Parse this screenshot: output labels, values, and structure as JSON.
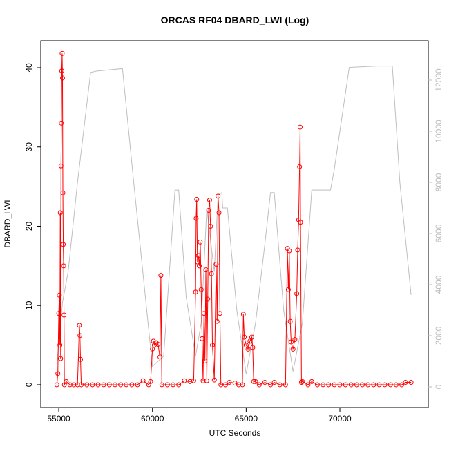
{
  "chart_data": {
    "type": "line",
    "title": "ORCAS RF04 DBARD_LWI (Log)",
    "x_label": "UTC Seconds",
    "y_label": "DBARD_LWI",
    "xlim": [
      54040,
      74717
    ],
    "xticks": [
      55000,
      60000,
      65000,
      70000
    ],
    "ylim": [
      -2.88,
      43.4
    ],
    "yticks": [
      0,
      10,
      20,
      30,
      40
    ],
    "y2lim": [
      -811,
      13540
    ],
    "y2ticks": [
      0,
      2000,
      4000,
      6000,
      8000,
      10000,
      12000
    ],
    "series": [
      {
        "color": "#ff0000",
        "marker": "open-circle",
        "x": [
          54900,
          54950,
          55000,
          55030,
          55060,
          55080,
          55100,
          55120,
          55140,
          55160,
          55180,
          55200,
          55220,
          55240,
          55260,
          55280,
          55300,
          55400,
          55600,
          55800,
          56000,
          56100,
          56130,
          56160,
          56200,
          56500,
          56800,
          57100,
          57400,
          57700,
          58000,
          58300,
          58600,
          58900,
          59200,
          59500,
          59800,
          59900,
          60000,
          60050,
          60100,
          60200,
          60300,
          60400,
          60450,
          60500,
          60800,
          61100,
          61400,
          61700,
          62000,
          62200,
          62300,
          62330,
          62360,
          62400,
          62450,
          62500,
          62550,
          62600,
          62650,
          62700,
          62750,
          62800,
          62850,
          62900,
          62950,
          63000,
          63050,
          63100,
          63150,
          63200,
          63300,
          63400,
          63450,
          63500,
          63550,
          63600,
          63650,
          63900,
          64100,
          64400,
          64600,
          64800,
          64850,
          64900,
          65000,
          65100,
          65200,
          65300,
          65350,
          65400,
          65500,
          65700,
          66000,
          66300,
          66500,
          66800,
          67100,
          67200,
          67250,
          67300,
          67350,
          67400,
          67500,
          67600,
          67700,
          67750,
          67800,
          67850,
          67880,
          67900,
          67950,
          68000,
          68300,
          68500,
          68800,
          69100,
          69400,
          69700,
          70000,
          70300,
          70600,
          70900,
          71200,
          71500,
          71800,
          72100,
          72400,
          72700,
          73000,
          73300,
          73500,
          73800
        ],
        "values": [
          0,
          1.4,
          9,
          11.3,
          5,
          21.7,
          3.3,
          27.6,
          33,
          39.6,
          41.8,
          38.7,
          24.2,
          17.7,
          15,
          8.8,
          0,
          0.4,
          0,
          0,
          0,
          7.5,
          6.2,
          3.2,
          0,
          0,
          0,
          0,
          0,
          0,
          0,
          0,
          0,
          0,
          0,
          0.5,
          0,
          0.4,
          4.5,
          5.5,
          5,
          5.3,
          5.1,
          3.5,
          13.8,
          0,
          0,
          0,
          0,
          0.5,
          0.4,
          0.5,
          11.7,
          21,
          23.4,
          15.5,
          16.3,
          15,
          18,
          12,
          5.8,
          0.5,
          9,
          3,
          14.5,
          0.5,
          10.8,
          22,
          23.3,
          20,
          14,
          5,
          0.6,
          15.2,
          8,
          23.8,
          21.7,
          9,
          0,
          0,
          0.3,
          0.2,
          0,
          0,
          8.9,
          6,
          5,
          4.5,
          5.5,
          6,
          4.7,
          0.4,
          0.4,
          0,
          0.3,
          0,
          0.3,
          0,
          0,
          17.2,
          12,
          16.9,
          8,
          5.4,
          4.5,
          5.7,
          11.5,
          17,
          20.8,
          27.5,
          32.5,
          20.5,
          0.3,
          0.4,
          0,
          0.4,
          0,
          0,
          0,
          0,
          0,
          0,
          0,
          0,
          0,
          0,
          0,
          0,
          0,
          0,
          0,
          0,
          0.3,
          0.3
        ]
      },
      {
        "color": "#bebebe",
        "axis": "y2",
        "x": [
          54900,
          55200,
          55500,
          56000,
          56700,
          57000,
          58400,
          59000,
          60000,
          60600,
          61200,
          61400,
          61800,
          62300,
          62600,
          62900,
          63300,
          63500,
          63700,
          63750,
          64000,
          64500,
          65000,
          65500,
          66000,
          66300,
          66500,
          67000,
          67500,
          68000,
          68500,
          69500,
          69700,
          70000,
          70500,
          72000,
          72800,
          73200,
          73800
        ],
        "values": [
          900,
          3300,
          4500,
          8000,
          12300,
          12350,
          12450,
          8000,
          800,
          1200,
          7700,
          7700,
          3500,
          1200,
          2500,
          7000,
          4500,
          7500,
          7600,
          7000,
          7000,
          3000,
          500,
          2500,
          5600,
          7600,
          7600,
          3000,
          600,
          2500,
          7700,
          7700,
          8500,
          10000,
          12500,
          12550,
          12550,
          8000,
          3600
        ]
      }
    ]
  }
}
